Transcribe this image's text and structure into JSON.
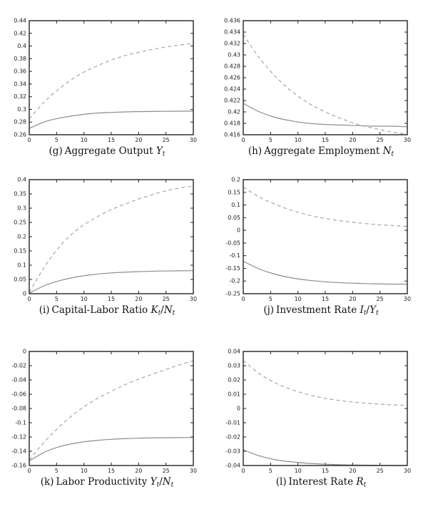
{
  "figure": {
    "layout": "2 columns x 3 rows",
    "background": "#ffffff",
    "axis_color": "#222222",
    "grid": false,
    "legend": null
  },
  "chart_data": [
    {
      "id": "g",
      "type": "line",
      "caption": {
        "label": "(g)",
        "title": "Aggregate Output",
        "symbol": "Y_t"
      },
      "xlim": [
        0,
        30
      ],
      "xticks": [
        0,
        5,
        10,
        15,
        20,
        25,
        30
      ],
      "ylim": [
        0.26,
        0.44
      ],
      "yticks": [
        0.26,
        0.28,
        0.3,
        0.32,
        0.34,
        0.36,
        0.38,
        0.4,
        0.42,
        0.44
      ],
      "x": [
        0,
        3,
        6,
        9,
        12,
        15,
        18,
        21,
        24,
        27,
        30
      ],
      "series": [
        {
          "name": "dashed",
          "style": "dashed",
          "color": "#a6a6a6",
          "values": [
            0.285,
            0.314,
            0.336,
            0.354,
            0.367,
            0.378,
            0.386,
            0.392,
            0.397,
            0.401,
            0.404
          ]
        },
        {
          "name": "solid",
          "style": "solid",
          "color": "#8c8c8c",
          "values": [
            0.27,
            0.281,
            0.287,
            0.291,
            0.294,
            0.2952,
            0.2961,
            0.2966,
            0.2969,
            0.2971,
            0.2972
          ]
        }
      ]
    },
    {
      "id": "h",
      "type": "line",
      "caption": {
        "label": "(h)",
        "title": "Aggregate Employment",
        "symbol": "N_t"
      },
      "xlim": [
        0,
        30
      ],
      "xticks": [
        0,
        5,
        10,
        15,
        20,
        25,
        30
      ],
      "ylim": [
        0.416,
        0.436
      ],
      "yticks": [
        0.416,
        0.418,
        0.42,
        0.422,
        0.424,
        0.426,
        0.428,
        0.43,
        0.432,
        0.434,
        0.436
      ],
      "x": [
        0,
        3,
        6,
        9,
        12,
        15,
        18,
        21,
        24,
        27,
        30
      ],
      "series": [
        {
          "name": "dashed",
          "style": "dashed",
          "color": "#a6a6a6",
          "values": [
            0.4336,
            0.4294,
            0.4261,
            0.4235,
            0.4215,
            0.42,
            0.4188,
            0.4178,
            0.4171,
            0.4165,
            0.4161
          ]
        },
        {
          "name": "solid",
          "style": "solid",
          "color": "#8c8c8c",
          "values": [
            0.4215,
            0.42,
            0.419,
            0.4184,
            0.418,
            0.4178,
            0.4177,
            0.4176,
            0.4175,
            0.4175,
            0.4174
          ]
        }
      ]
    },
    {
      "id": "i",
      "type": "line",
      "caption": {
        "label": "(i)",
        "title": "Capital-Labor Ratio",
        "symbol": "K_t/N_t"
      },
      "xlim": [
        0,
        30
      ],
      "xticks": [
        0,
        5,
        10,
        15,
        20,
        25,
        30
      ],
      "ylim": [
        0,
        0.4
      ],
      "yticks": [
        0,
        0.05,
        0.1,
        0.15,
        0.2,
        0.25,
        0.3,
        0.35,
        0.4
      ],
      "x": [
        0,
        3,
        6,
        9,
        12,
        15,
        18,
        21,
        24,
        27,
        30
      ],
      "series": [
        {
          "name": "dashed",
          "style": "dashed",
          "color": "#a6a6a6",
          "values": [
            0.005,
            0.1,
            0.175,
            0.228,
            0.265,
            0.295,
            0.318,
            0.338,
            0.356,
            0.369,
            0.378
          ]
        },
        {
          "name": "solid",
          "style": "solid",
          "color": "#8c8c8c",
          "values": [
            0.002,
            0.03,
            0.048,
            0.06,
            0.068,
            0.073,
            0.076,
            0.078,
            0.0795,
            0.0802,
            0.0808
          ]
        }
      ]
    },
    {
      "id": "j",
      "type": "line",
      "caption": {
        "label": "(j)",
        "title": "Investment Rate",
        "symbol": "I_t/Y_t"
      },
      "xlim": [
        0,
        30
      ],
      "xticks": [
        0,
        5,
        10,
        15,
        20,
        25,
        30
      ],
      "ylim": [
        -0.25,
        0.2
      ],
      "yticks": [
        -0.25,
        -0.2,
        -0.15,
        -0.1,
        -0.05,
        0,
        0.05,
        0.1,
        0.15,
        0.2
      ],
      "x": [
        0,
        3,
        6,
        9,
        12,
        15,
        18,
        21,
        24,
        27,
        30
      ],
      "series": [
        {
          "name": "dashed",
          "style": "dashed",
          "color": "#a6a6a6",
          "values": [
            0.17,
            0.131,
            0.101,
            0.078,
            0.06,
            0.047,
            0.037,
            0.0295,
            0.0236,
            0.0192,
            0.0158
          ]
        },
        {
          "name": "solid",
          "style": "solid",
          "color": "#8c8c8c",
          "values": [
            -0.122,
            -0.153,
            -0.174,
            -0.188,
            -0.197,
            -0.203,
            -0.207,
            -0.2093,
            -0.2109,
            -0.2119,
            -0.2126
          ]
        }
      ]
    },
    {
      "id": "k",
      "type": "line",
      "caption": {
        "label": "(k)",
        "title": "Labor Productivity",
        "symbol": "Y_t/N_t"
      },
      "xlim": [
        0,
        30
      ],
      "xticks": [
        0,
        5,
        10,
        15,
        20,
        25,
        30
      ],
      "ylim": [
        -0.16,
        0
      ],
      "yticks": [
        -0.16,
        -0.14,
        -0.12,
        -0.1,
        -0.08,
        -0.06,
        -0.04,
        -0.02,
        0
      ],
      "x": [
        0,
        3,
        6,
        9,
        12,
        15,
        18,
        21,
        24,
        27,
        30
      ],
      "series": [
        {
          "name": "dashed",
          "style": "dashed",
          "color": "#a6a6a6",
          "values": [
            -0.152,
            -0.125,
            -0.102,
            -0.083,
            -0.068,
            -0.056,
            -0.045,
            -0.036,
            -0.028,
            -0.02,
            -0.013
          ]
        },
        {
          "name": "solid",
          "style": "solid",
          "color": "#8c8c8c",
          "values": [
            -0.1535,
            -0.1405,
            -0.1326,
            -0.1279,
            -0.125,
            -0.1232,
            -0.1221,
            -0.1215,
            -0.1211,
            -0.1209,
            -0.1207
          ]
        }
      ]
    },
    {
      "id": "l",
      "type": "line",
      "caption": {
        "label": "(l)",
        "title": "Interest Rate",
        "symbol": "R_t"
      },
      "xlim": [
        0,
        30
      ],
      "xticks": [
        0,
        5,
        10,
        15,
        20,
        25,
        30
      ],
      "ylim": [
        -0.04,
        0.04
      ],
      "yticks": [
        -0.04,
        -0.03,
        -0.02,
        -0.01,
        0,
        0.01,
        0.02,
        0.03,
        0.04
      ],
      "x": [
        0,
        3,
        6,
        9,
        12,
        15,
        18,
        21,
        24,
        27,
        30
      ],
      "series": [
        {
          "name": "dashed",
          "style": "dashed",
          "color": "#a6a6a6",
          "values": [
            0.0335,
            0.0243,
            0.0177,
            0.013,
            0.0096,
            0.0071,
            0.0054,
            0.0042,
            0.0033,
            0.0026,
            0.0022
          ]
        },
        {
          "name": "solid",
          "style": "solid",
          "color": "#8c8c8c",
          "values": [
            -0.029,
            -0.0333,
            -0.036,
            -0.0375,
            -0.0385,
            -0.0391,
            -0.0395,
            -0.0397,
            -0.0398,
            -0.0399,
            -0.0399
          ]
        }
      ]
    }
  ]
}
